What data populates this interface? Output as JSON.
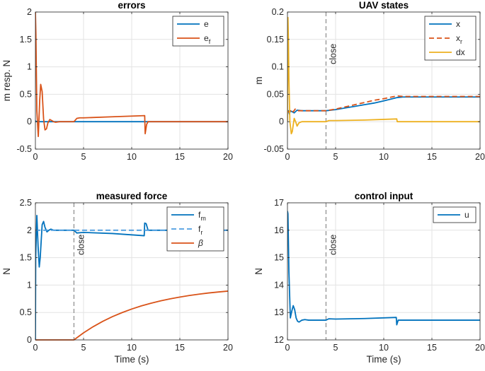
{
  "chart_data": [
    {
      "id": "errors",
      "type": "line",
      "title": "errors",
      "xlabel": "",
      "ylabel": "m resp. N",
      "xlim": [
        0,
        20
      ],
      "ylim": [
        -0.5,
        2
      ],
      "xticks": [
        0,
        5,
        10,
        15,
        20
      ],
      "yticks": [
        -0.5,
        0,
        0.5,
        1,
        1.5,
        2
      ],
      "ytick_labels": [
        "-0.5",
        "0",
        "0.5",
        "1",
        "1.5",
        "2"
      ],
      "grid": true,
      "legend_position": "top-right",
      "series": [
        {
          "name": "e",
          "legend_text": "e",
          "color": "#0072BD",
          "dash": "solid",
          "x": [
            0,
            0.05,
            0.2,
            0.5,
            1,
            3,
            20
          ],
          "y": [
            0.02,
            0.0,
            0.01,
            0.0,
            0.0,
            0.0,
            0.0
          ]
        },
        {
          "name": "e_f",
          "legend_text": "e",
          "legend_sub": "f",
          "color": "#D95319",
          "dash": "solid",
          "x": [
            0,
            0.05,
            0.15,
            0.3,
            0.45,
            0.55,
            0.7,
            0.85,
            1.0,
            1.15,
            1.3,
            1.5,
            1.7,
            1.9,
            2.1,
            2.5,
            3,
            3.9,
            4.0,
            4.3,
            4.6,
            5,
            8,
            11.35,
            11.4,
            11.55,
            11.7,
            12,
            20
          ],
          "y": [
            2.0,
            1.6,
            0.2,
            -0.27,
            0.4,
            0.68,
            0.55,
            0.05,
            -0.15,
            -0.13,
            -0.02,
            0.04,
            0.02,
            0.0,
            -0.01,
            0.0,
            0.0,
            0.0,
            0.0,
            0.06,
            0.07,
            0.07,
            0.09,
            0.11,
            -0.22,
            -0.05,
            0.0,
            0.0,
            0.0
          ]
        }
      ]
    },
    {
      "id": "uav-states",
      "type": "line",
      "title": "UAV states",
      "xlabel": "",
      "ylabel": "m",
      "xlim": [
        0,
        20
      ],
      "ylim": [
        -0.05,
        0.2
      ],
      "xticks": [
        0,
        5,
        10,
        15,
        20
      ],
      "yticks": [
        -0.05,
        0,
        0.05,
        0.1,
        0.15,
        0.2
      ],
      "ytick_labels": [
        "-0.05",
        "0",
        "0.05",
        "0.1",
        "0.15",
        "0.2"
      ],
      "grid": true,
      "legend_position": "top-right",
      "vline": {
        "x": 4,
        "label": "close"
      },
      "series": [
        {
          "name": "x",
          "legend_text": "x",
          "color": "#0072BD",
          "dash": "solid",
          "x": [
            0,
            0.1,
            0.2,
            0.3,
            0.5,
            0.7,
            1,
            1.5,
            2,
            3,
            4,
            5,
            6,
            7,
            8,
            9,
            10,
            11.4,
            12,
            15,
            20
          ],
          "y": [
            0.02,
            0.02,
            0.014,
            0.02,
            0.018,
            0.016,
            0.021,
            0.02,
            0.02,
            0.02,
            0.02,
            0.022,
            0.025,
            0.028,
            0.031,
            0.034,
            0.038,
            0.044,
            0.045,
            0.045,
            0.045
          ]
        },
        {
          "name": "x_r",
          "legend_text": "x",
          "legend_sub": "r",
          "color": "#D95319",
          "dash": "dashed",
          "x": [
            0,
            0.2,
            0.4,
            0.6,
            0.8,
            1,
            1.5,
            2,
            3,
            4,
            5,
            6,
            7,
            8,
            9,
            10,
            11.4,
            12,
            15,
            20
          ],
          "y": [
            0.02,
            0.017,
            0.022,
            0.018,
            0.023,
            0.02,
            0.02,
            0.02,
            0.02,
            0.02,
            0.023,
            0.027,
            0.031,
            0.035,
            0.039,
            0.042,
            0.047,
            0.046,
            0.046,
            0.046
          ]
        },
        {
          "name": "dx",
          "legend_text": "dx",
          "color": "#EDB120",
          "dash": "solid",
          "x": [
            0,
            0.05,
            0.1,
            0.15,
            0.25,
            0.4,
            0.5,
            0.7,
            0.85,
            1.0,
            1.2,
            1.5,
            2,
            3,
            4,
            4.3,
            5,
            8,
            11.35,
            11.4,
            11.6,
            20
          ],
          "y": [
            0.0,
            0.19,
            0.15,
            0.08,
            0.0,
            -0.022,
            -0.018,
            0.006,
            0.0,
            -0.008,
            -0.002,
            0.0,
            0.0,
            0.0,
            0.0,
            0.002,
            0.002,
            0.003,
            0.005,
            0.0,
            0.0,
            0.0
          ]
        }
      ]
    },
    {
      "id": "measured-force",
      "type": "line",
      "title": "measured force",
      "xlabel": "Time (s)",
      "ylabel": "N",
      "xlim": [
        0,
        20
      ],
      "ylim": [
        0,
        2.5
      ],
      "xticks": [
        0,
        5,
        10,
        15,
        20
      ],
      "yticks": [
        0,
        0.5,
        1,
        1.5,
        2,
        2.5
      ],
      "ytick_labels": [
        "0",
        "0.5",
        "1",
        "1.5",
        "2",
        "2.5"
      ],
      "grid": true,
      "legend_position": "top-right",
      "vline": {
        "x": 4,
        "label": "close"
      },
      "series": [
        {
          "name": "f_m",
          "legend_text": "f",
          "legend_sub": "m",
          "color": "#0072BD",
          "dash": "solid",
          "x": [
            0,
            0.03,
            0.15,
            0.28,
            0.4,
            0.5,
            0.6,
            0.7,
            0.85,
            1.0,
            1.2,
            1.4,
            1.6,
            1.9,
            2.3,
            3,
            4,
            4.3,
            5,
            8,
            11.3,
            11.35,
            11.5,
            11.7,
            12,
            20
          ],
          "y": [
            0.0,
            1.5,
            2.27,
            1.7,
            1.33,
            1.5,
            1.8,
            2.1,
            2.16,
            2.05,
            1.97,
            2.0,
            2.02,
            2.0,
            2.0,
            2.0,
            2.0,
            1.95,
            1.96,
            1.94,
            1.9,
            2.13,
            2.12,
            2.0,
            2.0,
            2.0
          ]
        },
        {
          "name": "f_r",
          "legend_text": "f",
          "legend_sub": "r",
          "color": "#4D9DE0",
          "dash": "dashed",
          "x": [
            0,
            20
          ],
          "y": [
            2.0,
            2.0
          ]
        },
        {
          "name": "beta",
          "legend_text": "β",
          "color": "#D95319",
          "dash": "solid",
          "x": [
            0,
            4,
            5,
            6,
            7,
            8,
            9,
            10,
            11,
            12,
            13,
            14,
            15,
            16,
            17,
            18,
            19,
            20
          ],
          "y": [
            0.0,
            0.0,
            0.129,
            0.241,
            0.339,
            0.424,
            0.498,
            0.563,
            0.62,
            0.669,
            0.712,
            0.749,
            0.781,
            0.81,
            0.834,
            0.856,
            0.874,
            0.89
          ]
        }
      ]
    },
    {
      "id": "control-input",
      "type": "line",
      "title": "control input",
      "xlabel": "Time (s)",
      "ylabel": "N",
      "xlim": [
        0,
        20
      ],
      "ylim": [
        12,
        17
      ],
      "xticks": [
        0,
        5,
        10,
        15,
        20
      ],
      "yticks": [
        12,
        13,
        14,
        15,
        16,
        17
      ],
      "ytick_labels": [
        "12",
        "13",
        "14",
        "15",
        "16",
        "17"
      ],
      "grid": true,
      "legend_position": "top-right",
      "vline": {
        "x": 4,
        "label": "close"
      },
      "series": [
        {
          "name": "u",
          "legend_text": "u",
          "color": "#0072BD",
          "dash": "solid",
          "x": [
            0,
            0.05,
            0.15,
            0.3,
            0.45,
            0.6,
            0.75,
            0.9,
            1.05,
            1.2,
            1.5,
            1.8,
            2.2,
            3,
            4,
            4.3,
            5,
            8,
            11.3,
            11.35,
            11.5,
            11.7,
            12,
            20
          ],
          "y": [
            16.7,
            16.6,
            14.5,
            12.8,
            13.05,
            13.25,
            13.1,
            12.8,
            12.68,
            12.65,
            12.72,
            12.74,
            12.72,
            12.72,
            12.72,
            12.77,
            12.76,
            12.78,
            12.82,
            12.55,
            12.72,
            12.72,
            12.72,
            12.72
          ]
        }
      ]
    }
  ]
}
